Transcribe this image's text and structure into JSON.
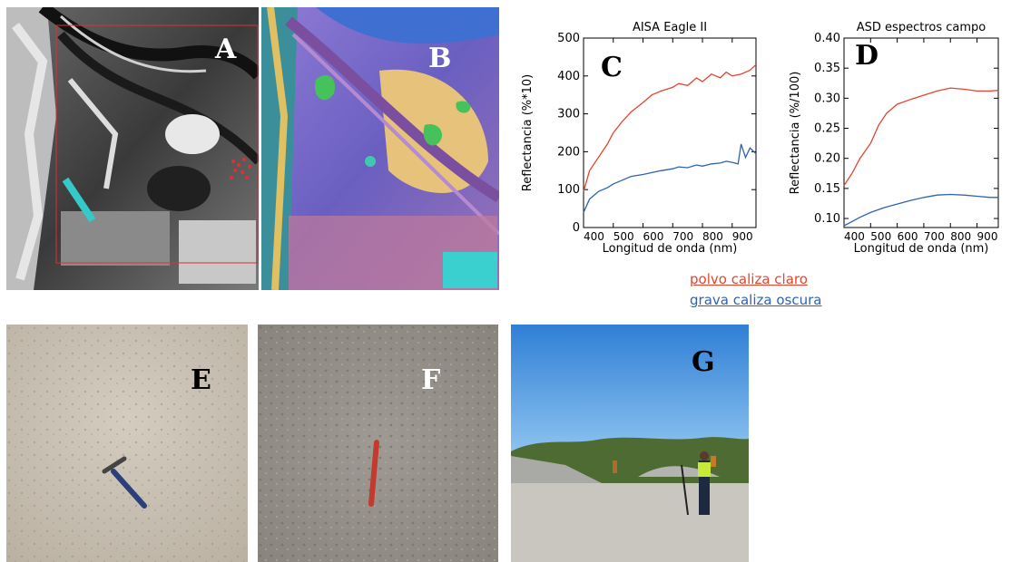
{
  "panels": {
    "A": {
      "label": "A"
    },
    "B": {
      "label": "B"
    },
    "C": {
      "label": "C"
    },
    "D": {
      "label": "D"
    },
    "E": {
      "label": "E"
    },
    "F": {
      "label": "F"
    },
    "G": {
      "label": "G"
    }
  },
  "colors": {
    "series_red": "#e8432c",
    "series_blue": "#2f63b0"
  },
  "legend": [
    {
      "name": "polvo caliza claro",
      "color": "#e8432c"
    },
    {
      "name": "grava caliza oscura",
      "color": "#2f63b0"
    }
  ],
  "chart_data": [
    {
      "type": "line",
      "title": "AISA Eagle II",
      "xlabel": "Longitud de onda (nm)",
      "ylabel": "Reflectancia (%*10)",
      "xlim": [
        400,
        980
      ],
      "ylim": [
        0,
        500
      ],
      "xticks": [
        400,
        500,
        600,
        700,
        800,
        900
      ],
      "yticks": [
        0,
        100,
        200,
        300,
        400,
        500
      ],
      "ytick_labels": [
        "0",
        "100",
        "200",
        "300",
        "400",
        "500"
      ],
      "series": [
        {
          "name": "polvo caliza claro",
          "color": "#e8432c",
          "x": [
            400,
            420,
            450,
            480,
            500,
            530,
            560,
            600,
            630,
            660,
            700,
            720,
            750,
            780,
            800,
            830,
            860,
            880,
            900,
            930,
            960,
            980
          ],
          "y": [
            95,
            150,
            185,
            220,
            250,
            280,
            305,
            330,
            350,
            360,
            370,
            380,
            375,
            395,
            385,
            405,
            395,
            410,
            400,
            405,
            415,
            430
          ]
        },
        {
          "name": "grava caliza oscura",
          "color": "#2f63b0",
          "x": [
            400,
            420,
            450,
            480,
            500,
            530,
            560,
            600,
            630,
            660,
            700,
            720,
            750,
            780,
            800,
            830,
            860,
            880,
            900,
            920,
            930,
            945,
            960,
            980
          ],
          "y": [
            40,
            75,
            95,
            105,
            115,
            125,
            135,
            140,
            145,
            150,
            155,
            160,
            158,
            165,
            162,
            168,
            170,
            175,
            172,
            168,
            220,
            185,
            210,
            195
          ]
        }
      ]
    },
    {
      "type": "line",
      "title": "ASD espectros campo",
      "xlabel": "Longitud de onda (nm)",
      "ylabel": "Reflectancia (%/100)",
      "xlim": [
        400,
        980
      ],
      "ylim": [
        0.085,
        0.4
      ],
      "xticks": [
        400,
        500,
        600,
        700,
        800,
        900
      ],
      "yticks": [
        0.1,
        0.15,
        0.2,
        0.25,
        0.3,
        0.35,
        0.4
      ],
      "ytick_labels": [
        "0.10",
        "0.15",
        "0.20",
        "0.25",
        "0.30",
        "0.35",
        "0.40"
      ],
      "series": [
        {
          "name": "polvo caliza claro",
          "color": "#e8432c",
          "x": [
            400,
            430,
            460,
            500,
            530,
            560,
            600,
            650,
            700,
            750,
            800,
            850,
            900,
            950,
            980
          ],
          "y": [
            0.155,
            0.175,
            0.2,
            0.225,
            0.255,
            0.275,
            0.29,
            0.298,
            0.305,
            0.312,
            0.317,
            0.315,
            0.312,
            0.312,
            0.313
          ]
        },
        {
          "name": "grava caliza oscura",
          "color": "#2f63b0",
          "x": [
            400,
            430,
            460,
            500,
            550,
            600,
            650,
            700,
            750,
            800,
            850,
            900,
            950,
            980
          ],
          "y": [
            0.088,
            0.095,
            0.102,
            0.11,
            0.118,
            0.124,
            0.13,
            0.135,
            0.139,
            0.14,
            0.139,
            0.137,
            0.135,
            0.135
          ]
        }
      ]
    }
  ]
}
